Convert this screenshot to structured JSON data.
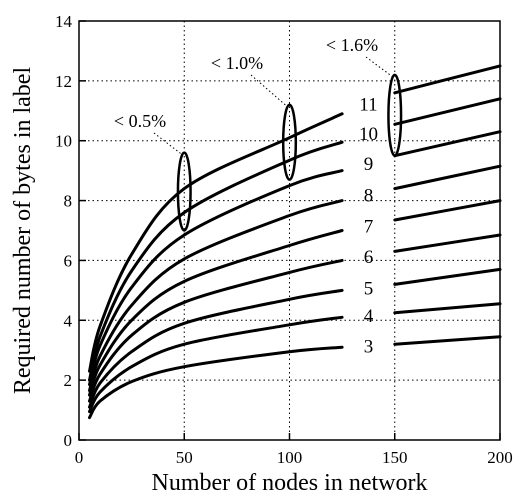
{
  "chart_data": {
    "type": "line",
    "xlabel": "Number of nodes in network",
    "ylabel": "Required number of bytes in label",
    "xlim": [
      0,
      200
    ],
    "ylim": [
      0,
      14
    ],
    "xticks": [
      "0",
      "50",
      "100",
      "150",
      "200"
    ],
    "yticks": [
      "0",
      "2",
      "4",
      "6",
      "8",
      "10",
      "12",
      "14"
    ],
    "grid": "dotted",
    "series": [
      {
        "name": "3",
        "x": [
          5,
          10,
          25,
          50,
          100,
          125,
          150,
          200
        ],
        "y": [
          0.75,
          1.3,
          1.95,
          2.45,
          2.95,
          3.1,
          3.2,
          3.45
        ]
      },
      {
        "name": "4",
        "x": [
          5,
          10,
          25,
          50,
          100,
          125,
          150,
          200
        ],
        "y": [
          0.95,
          1.6,
          2.45,
          3.2,
          3.85,
          4.1,
          4.25,
          4.55
        ]
      },
      {
        "name": "5",
        "x": [
          5,
          10,
          25,
          50,
          100,
          125,
          150,
          200
        ],
        "y": [
          1.1,
          1.9,
          2.95,
          3.9,
          4.7,
          5.0,
          5.2,
          5.7
        ]
      },
      {
        "name": "6",
        "x": [
          5,
          10,
          25,
          50,
          100,
          125,
          150,
          200
        ],
        "y": [
          1.3,
          2.2,
          3.5,
          4.6,
          5.6,
          6.0,
          6.3,
          6.85
        ]
      },
      {
        "name": "7",
        "x": [
          5,
          10,
          25,
          50,
          100,
          125,
          150,
          200
        ],
        "y": [
          1.5,
          2.5,
          4.0,
          5.3,
          6.5,
          7.0,
          7.35,
          8.0
        ]
      },
      {
        "name": "8",
        "x": [
          5,
          10,
          25,
          50,
          100,
          125,
          150,
          200
        ],
        "y": [
          1.65,
          2.8,
          4.5,
          6.05,
          7.5,
          8.0,
          8.4,
          9.15
        ]
      },
      {
        "name": "9",
        "x": [
          5,
          10,
          25,
          50,
          100,
          125,
          150,
          200
        ],
        "y": [
          1.85,
          3.15,
          5.1,
          6.85,
          8.5,
          9.0,
          9.5,
          10.3
        ]
      },
      {
        "name": "10",
        "x": [
          5,
          10,
          25,
          50,
          100,
          125,
          150,
          200
        ],
        "y": [
          2.0,
          3.45,
          5.65,
          7.6,
          9.35,
          9.95,
          10.55,
          11.4
        ]
      },
      {
        "name": "11",
        "x": [
          5,
          10,
          25,
          50,
          100,
          125,
          150,
          200
        ],
        "y": [
          2.3,
          3.8,
          6.2,
          8.4,
          10.1,
          10.9,
          11.6,
          12.5
        ]
      }
    ],
    "annotations": [
      {
        "text": "< 0.5%",
        "ellipse_center": [
          50,
          8.3
        ],
        "ellipse_radii": [
          3,
          1.3
        ]
      },
      {
        "text": "< 1.0%",
        "ellipse_center": [
          100,
          9.95
        ],
        "ellipse_radii": [
          3,
          1.25
        ]
      },
      {
        "text": "< 1.6%",
        "ellipse_center": [
          150,
          10.85
        ],
        "ellipse_radii": [
          3,
          1.35
        ]
      }
    ]
  }
}
